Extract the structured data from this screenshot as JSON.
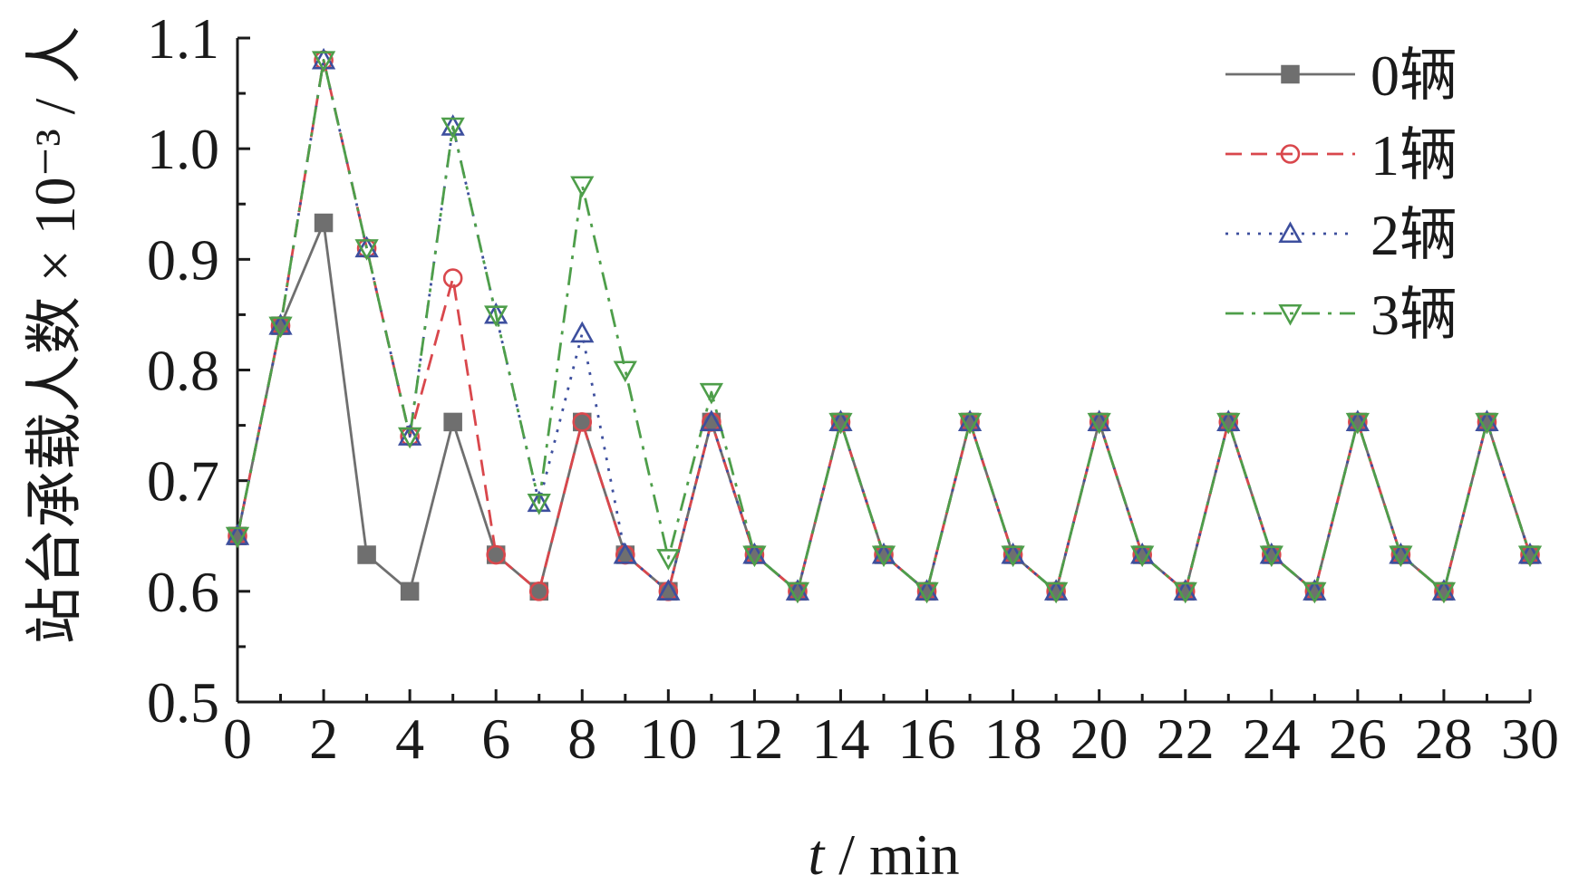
{
  "chart_data": {
    "type": "line",
    "xlabel_italic": "t",
    "xlabel_rest": " / min",
    "ylabel": "站台承载人数 × 10⁻³ / 人",
    "xlim": [
      0,
      30
    ],
    "ylim": [
      0.5,
      1.1
    ],
    "x_ticks": [
      0,
      2,
      4,
      6,
      8,
      10,
      12,
      14,
      16,
      18,
      20,
      22,
      24,
      26,
      28,
      30
    ],
    "y_ticks": [
      0.5,
      0.6,
      0.7,
      0.8,
      0.9,
      1.0,
      1.1
    ],
    "y_tick_labels": [
      "0.5",
      "0.6",
      "0.7",
      "0.8",
      "0.9",
      "1.0",
      "1.1"
    ],
    "legend_position": "top-right",
    "x": [
      0,
      1,
      2,
      3,
      4,
      5,
      6,
      7,
      8,
      9,
      10,
      11,
      12,
      13,
      14,
      15,
      16,
      17,
      18,
      19,
      20,
      21,
      22,
      23,
      24,
      25,
      26,
      27,
      28,
      29,
      30
    ],
    "series": [
      {
        "name": "0辆",
        "color": "#6f6f6f",
        "dash": "solid",
        "marker": "square-filled",
        "values": [
          0.65,
          0.84,
          0.933,
          0.633,
          0.6,
          0.753,
          0.633,
          0.6,
          0.753,
          0.633,
          0.6,
          0.753,
          0.633,
          0.6,
          0.753,
          0.633,
          0.6,
          0.753,
          0.633,
          0.6,
          0.753,
          0.633,
          0.6,
          0.753,
          0.633,
          0.6,
          0.753,
          0.633,
          0.6,
          0.753,
          0.633
        ]
      },
      {
        "name": "1辆",
        "color": "#d9474c",
        "dash": "dashed",
        "marker": "circle-open",
        "values": [
          0.65,
          0.84,
          1.08,
          0.91,
          0.74,
          0.883,
          0.633,
          0.6,
          0.753,
          0.633,
          0.6,
          0.753,
          0.633,
          0.6,
          0.753,
          0.633,
          0.6,
          0.753,
          0.633,
          0.6,
          0.753,
          0.633,
          0.6,
          0.753,
          0.633,
          0.6,
          0.753,
          0.633,
          0.6,
          0.753,
          0.633
        ]
      },
      {
        "name": "2辆",
        "color": "#3d4f9e",
        "dash": "dotted",
        "marker": "triangle-up-open",
        "values": [
          0.65,
          0.84,
          1.08,
          0.91,
          0.74,
          1.02,
          0.85,
          0.68,
          0.833,
          0.633,
          0.6,
          0.753,
          0.633,
          0.6,
          0.753,
          0.633,
          0.6,
          0.753,
          0.633,
          0.6,
          0.753,
          0.633,
          0.6,
          0.753,
          0.633,
          0.6,
          0.753,
          0.633,
          0.6,
          0.753,
          0.633
        ]
      },
      {
        "name": "3辆",
        "color": "#4e9e4a",
        "dash": "dashdot",
        "marker": "triangle-down-open",
        "values": [
          0.65,
          0.84,
          1.08,
          0.91,
          0.74,
          1.02,
          0.85,
          0.68,
          0.967,
          0.8,
          0.63,
          0.78,
          0.633,
          0.6,
          0.753,
          0.633,
          0.6,
          0.753,
          0.633,
          0.6,
          0.753,
          0.633,
          0.6,
          0.753,
          0.633,
          0.6,
          0.753,
          0.633,
          0.6,
          0.753,
          0.633
        ]
      }
    ]
  }
}
